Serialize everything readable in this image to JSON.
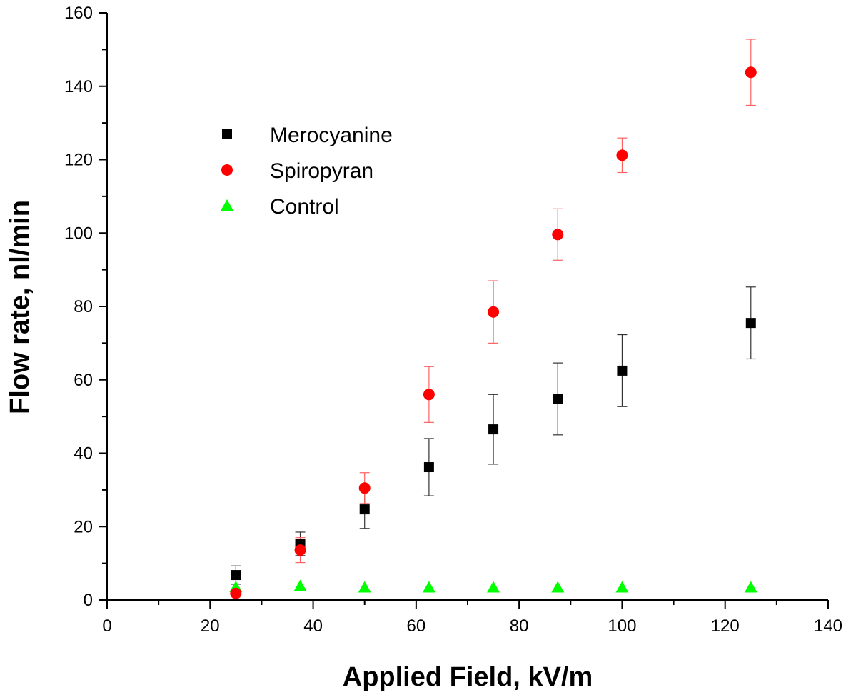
{
  "chart_data": {
    "type": "scatter",
    "title": "",
    "xlabel": "Applied Field, kV/m",
    "ylabel": "Flow rate, nl/min",
    "xlim": [
      0,
      140
    ],
    "ylim": [
      0,
      160
    ],
    "x_ticks": [
      0,
      20,
      40,
      60,
      80,
      100,
      120,
      140
    ],
    "y_ticks": [
      0,
      20,
      40,
      60,
      80,
      100,
      120,
      140,
      160
    ],
    "grid": false,
    "legend_position": "upper-left",
    "series": [
      {
        "name": "Merocyanine",
        "marker": "square",
        "color": "#000000",
        "errorbar_color": "#333333",
        "points": [
          {
            "x": 25,
            "y": 6.8,
            "err": 2.5
          },
          {
            "x": 37.5,
            "y": 15.3,
            "err": 3.2
          },
          {
            "x": 50,
            "y": 24.7,
            "err": 5.2
          },
          {
            "x": 62.5,
            "y": 36.2,
            "err": 7.8
          },
          {
            "x": 75,
            "y": 46.5,
            "err": 9.5
          },
          {
            "x": 87.5,
            "y": 54.8,
            "err": 9.8
          },
          {
            "x": 100,
            "y": 62.5,
            "err": 9.8
          },
          {
            "x": 125,
            "y": 75.5,
            "err": 9.8
          }
        ]
      },
      {
        "name": "Spiropyran",
        "marker": "circle",
        "color": "#ff0000",
        "errorbar_color": "#ff6060",
        "points": [
          {
            "x": 25,
            "y": 1.8,
            "err": 0
          },
          {
            "x": 37.5,
            "y": 13.6,
            "err": 3.4
          },
          {
            "x": 50,
            "y": 30.5,
            "err": 4.2
          },
          {
            "x": 62.5,
            "y": 56.0,
            "err": 7.6
          },
          {
            "x": 75,
            "y": 78.5,
            "err": 8.5
          },
          {
            "x": 87.5,
            "y": 99.6,
            "err": 7.0
          },
          {
            "x": 100,
            "y": 121.2,
            "err": 4.7
          },
          {
            "x": 125,
            "y": 143.8,
            "err": 9.0
          }
        ]
      },
      {
        "name": "Control",
        "marker": "triangle",
        "color": "#00ff00",
        "errorbar_color": "#00ff00",
        "points": [
          {
            "x": 25,
            "y": 3.5,
            "err": 0
          },
          {
            "x": 37.5,
            "y": 3.8,
            "err": 0
          },
          {
            "x": 50,
            "y": 3.4,
            "err": 0
          },
          {
            "x": 62.5,
            "y": 3.4,
            "err": 0
          },
          {
            "x": 75,
            "y": 3.4,
            "err": 0
          },
          {
            "x": 87.5,
            "y": 3.4,
            "err": 0
          },
          {
            "x": 100,
            "y": 3.4,
            "err": 0
          },
          {
            "x": 125,
            "y": 3.4,
            "err": 0
          }
        ]
      }
    ]
  }
}
